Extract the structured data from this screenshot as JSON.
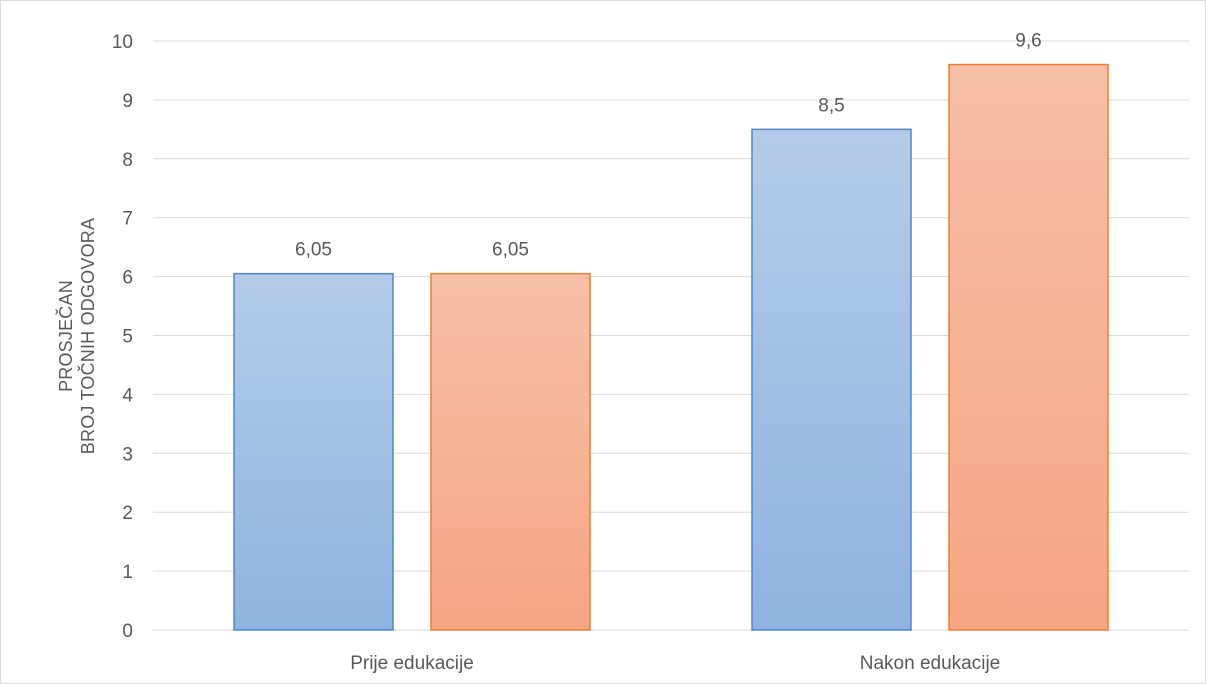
{
  "chart_data": {
    "type": "bar",
    "title": "",
    "xlabel": "",
    "ylabel_lines": [
      "PROSJEČAN",
      "BROJ TOČNIH ODGOVORA"
    ],
    "categories": [
      "Prije edukacije",
      "Nakon edukacije"
    ],
    "series": [
      {
        "values": [
          6.05,
          8.5
        ],
        "labels": [
          "6,05",
          "8,5"
        ],
        "color": "#8fb3e0",
        "color_top": "#b4cce9",
        "border": "#4f87c7"
      },
      {
        "values": [
          6.05,
          9.6
        ],
        "labels": [
          "6,05",
          "9,6"
        ],
        "color": "#f6a582",
        "color_top": "#f7bfa7",
        "border": "#ed7d31"
      }
    ],
    "ylim": [
      0,
      10
    ],
    "yticks": [
      "0",
      "1",
      "2",
      "3",
      "4",
      "5",
      "6",
      "7",
      "8",
      "9",
      "10"
    ],
    "grid": true,
    "legend": "none",
    "gridline_color": "#d9d9d9"
  }
}
